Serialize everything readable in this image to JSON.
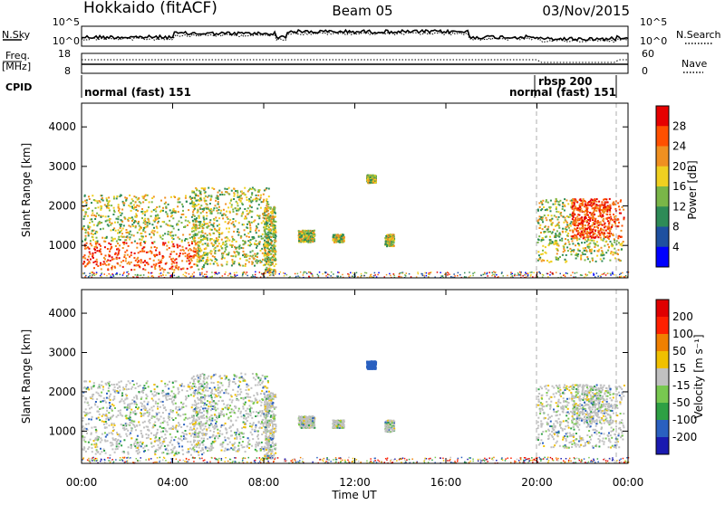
{
  "header": {
    "station": "Hokkaido (fitACF)",
    "beam": "Beam 05",
    "date": "03/Nov/2015"
  },
  "top_panels": {
    "nsky_label": "N.Sky",
    "nsky_ticks": [
      "10^5",
      "10^0"
    ],
    "nsearch_label": "N.Search",
    "nsearch_ticks": [
      "10^5",
      "10^0"
    ],
    "freq_label": "Freq.",
    "freq_unit": "[MHz]",
    "freq_ticks": [
      "18",
      "8"
    ],
    "nave_label": "Nave",
    "nave_ticks": [
      "60",
      "0"
    ],
    "cpid_label": "CPID",
    "cpid_segments": [
      {
        "label": "normal (fast) 151",
        "start_hr": 0
      },
      {
        "label": "rbsp 200",
        "start_hr": 20.0
      },
      {
        "label": "normal (fast) 151",
        "start_hr": 22.0
      }
    ]
  },
  "chart_data": [
    {
      "type": "heatmap",
      "name": "power",
      "ylabel": "Slant Range [km]",
      "y_ticks": [
        "1000",
        "2000",
        "3000",
        "4000"
      ],
      "ylim": [
        180,
        4600
      ],
      "xlim": [
        0,
        24
      ],
      "colorbar_label": "Power [dB]",
      "colorbar_ticks": [
        "4",
        "8",
        "12",
        "16",
        "20",
        "24",
        "28"
      ],
      "colorbar_range": [
        0,
        30
      ],
      "colors": [
        "#0000ff",
        "#1e50a0",
        "#2e8b57",
        "#7ab648",
        "#f0d020",
        "#f09020",
        "#ff5000",
        "#e60000"
      ]
    },
    {
      "type": "heatmap",
      "name": "velocity",
      "ylabel": "Slant Range [km]",
      "y_ticks": [
        "1000",
        "2000",
        "3000",
        "4000"
      ],
      "ylim": [
        180,
        4600
      ],
      "xlim": [
        0,
        24
      ],
      "colorbar_label": "Velocity [m s⁻¹]",
      "colorbar_ticks": [
        "200",
        "100",
        "50",
        "15",
        "-15",
        "-50",
        "-100",
        "-200"
      ],
      "colors": [
        "#1a1ab0",
        "#2a60c0",
        "#2ea044",
        "#78c850",
        "#c0c0c0",
        "#f0c000",
        "#f08000",
        "#ff2000",
        "#e00000"
      ]
    }
  ],
  "x_axis": {
    "ticks": [
      "00:00",
      "04:00",
      "08:00",
      "12:00",
      "16:00",
      "20:00",
      "00:00"
    ],
    "label": "Time UT"
  }
}
